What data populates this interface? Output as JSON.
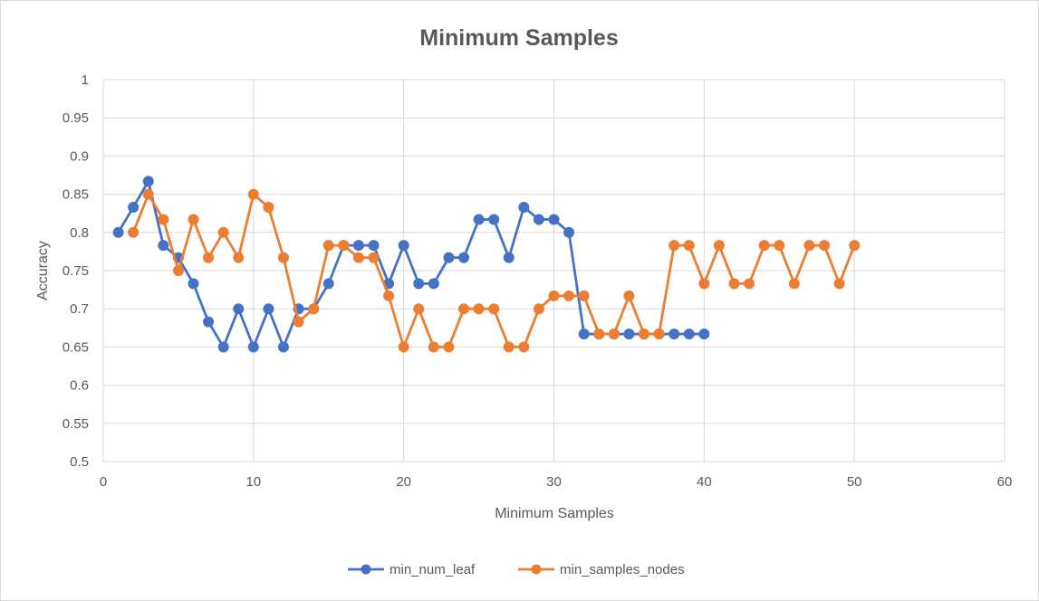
{
  "chart_data": {
    "type": "line",
    "title": "Minimum Samples",
    "xlabel": "Minimum Samples",
    "ylabel": "Accuracy",
    "xlim": [
      0,
      60
    ],
    "ylim": [
      0.5,
      1
    ],
    "xticks": [
      0,
      10,
      20,
      30,
      40,
      50,
      60
    ],
    "xtick_labels": [
      "0",
      "10",
      "20",
      "30",
      "40",
      "50",
      "60"
    ],
    "yticks": [
      0.5,
      0.55,
      0.6,
      0.65,
      0.7,
      0.75,
      0.8,
      0.85,
      0.9,
      0.95,
      1
    ],
    "ytick_labels": [
      "0.5",
      "0.55",
      "0.6",
      "0.65",
      "0.7",
      "0.75",
      "0.8",
      "0.85",
      "0.9",
      "0.95",
      "1"
    ],
    "grid": true,
    "legend_position": "bottom",
    "series": [
      {
        "name": "min_num_leaf",
        "color": "#4472c4",
        "x": [
          1,
          2,
          3,
          4,
          5,
          6,
          7,
          8,
          9,
          10,
          11,
          12,
          13,
          14,
          15,
          16,
          17,
          18,
          19,
          20,
          21,
          22,
          23,
          24,
          25,
          26,
          27,
          28,
          29,
          30,
          31,
          32,
          33,
          34,
          35,
          36,
          37,
          38,
          39,
          40
        ],
        "y": [
          0.8,
          0.833,
          0.867,
          0.783,
          0.767,
          0.733,
          0.683,
          0.65,
          0.7,
          0.65,
          0.7,
          0.65,
          0.7,
          0.7,
          0.733,
          0.783,
          0.783,
          0.783,
          0.733,
          0.783,
          0.733,
          0.733,
          0.767,
          0.767,
          0.817,
          0.817,
          0.767,
          0.833,
          0.817,
          0.817,
          0.8,
          0.667,
          0.667,
          0.667,
          0.667,
          0.667,
          0.667,
          0.667,
          0.667,
          0.667
        ]
      },
      {
        "name": "min_samples_nodes",
        "color": "#ed7d31",
        "x": [
          2,
          3,
          4,
          5,
          6,
          7,
          8,
          9,
          10,
          11,
          12,
          13,
          14,
          15,
          16,
          17,
          18,
          19,
          20,
          21,
          22,
          23,
          24,
          25,
          26,
          27,
          28,
          29,
          30,
          31,
          32,
          33,
          34,
          35,
          36,
          37,
          38,
          39,
          40,
          41,
          42,
          43,
          44,
          45,
          46,
          47,
          48,
          49,
          50
        ],
        "y": [
          0.8,
          0.85,
          0.817,
          0.75,
          0.817,
          0.767,
          0.8,
          0.767,
          0.85,
          0.833,
          0.767,
          0.683,
          0.7,
          0.783,
          0.783,
          0.767,
          0.767,
          0.717,
          0.65,
          0.7,
          0.65,
          0.65,
          0.7,
          0.7,
          0.7,
          0.65,
          0.65,
          0.7,
          0.717,
          0.717,
          0.717,
          0.667,
          0.667,
          0.717,
          0.667,
          0.667,
          0.783,
          0.783,
          0.733,
          0.783,
          0.733,
          0.733,
          0.783,
          0.783,
          0.733,
          0.783,
          0.783,
          0.733,
          0.783
        ]
      }
    ]
  }
}
